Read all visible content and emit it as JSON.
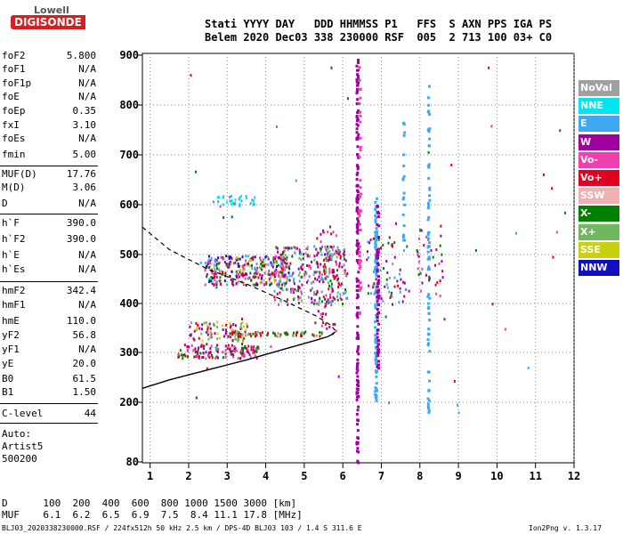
{
  "logo": {
    "line1": "Lowell",
    "line2": "DIGISONDE"
  },
  "header": {
    "row1": "Stati YYYY DAY   DDD HHMMSS P1   FFS  S AXN PPS IGA PS",
    "row2": "Belem 2020 Dec03 338 230000 RSF  005  2 713 100 03+ C0"
  },
  "params": [
    {
      "label": "foF2",
      "value": "5.800"
    },
    {
      "label": "foF1",
      "value": "N/A"
    },
    {
      "label": "foF1p",
      "value": "N/A"
    },
    {
      "label": "foE",
      "value": "N/A"
    },
    {
      "label": "foEp",
      "value": "0.35"
    },
    {
      "label": "fxI",
      "value": "3.10"
    },
    {
      "label": "foEs",
      "value": "N/A"
    },
    {
      "label": "fmin",
      "value": "5.00"
    },
    {
      "label": "MUF(D)",
      "value": "17.76"
    },
    {
      "label": "M(D)",
      "value": "3.06"
    },
    {
      "label": "D",
      "value": "N/A"
    },
    {
      "label": "h`F",
      "value": "390.0"
    },
    {
      "label": "h`F2",
      "value": "390.0"
    },
    {
      "label": "h`E",
      "value": "N/A"
    },
    {
      "label": "h`Es",
      "value": "N/A"
    },
    {
      "label": "hmF2",
      "value": "342.4"
    },
    {
      "label": "hmF1",
      "value": "N/A"
    },
    {
      "label": "hmE",
      "value": "110.0"
    },
    {
      "label": "yF2",
      "value": "56.8"
    },
    {
      "label": "yF1",
      "value": "N/A"
    },
    {
      "label": "yE",
      "value": "20.0"
    },
    {
      "label": "B0",
      "value": "61.5"
    },
    {
      "label": "B1",
      "value": "1.50"
    },
    {
      "label": "C-level",
      "value": "44"
    }
  ],
  "autoscaling": {
    "line1": "Auto:",
    "line2": "Artist5",
    "line3": "500200"
  },
  "legend": [
    {
      "label": "NoVal",
      "color": "#a0a0a0"
    },
    {
      "label": "NNE",
      "color": "#00e6f0"
    },
    {
      "label": "E",
      "color": "#40a8f0"
    },
    {
      "label": "W",
      "color": "#a000a0"
    },
    {
      "label": "Vo-",
      "color": "#f040b0"
    },
    {
      "label": "Vo+",
      "color": "#e00020"
    },
    {
      "label": "SSW",
      "color": "#f0b0b0"
    },
    {
      "label": "X-",
      "color": "#008000"
    },
    {
      "label": "X+",
      "color": "#70b860"
    },
    {
      "label": "SSE",
      "color": "#c8d010"
    },
    {
      "label": "NNW",
      "color": "#1010c0"
    }
  ],
  "footer": {
    "d_row": "D      100  200  400  600  800 1000 1500 3000 [km]",
    "muf_row": "MUF    6.1  6.2  6.5  6.9  7.5  8.4 11.1 17.8 [MHz]",
    "file_info": "BLJ03_2020338230000.RSF / 224fx512h 50 kHz 2.5 km / DPS-4D BLJ03 103 / 1.4 S 311.6 E",
    "version": "Ion2Png v. 1.3.17"
  },
  "chart_data": {
    "type": "scatter",
    "xlim": [
      0.8,
      12
    ],
    "ylim": [
      80,
      900
    ],
    "x_ticks": [
      1,
      2,
      3,
      4,
      5,
      6,
      7,
      8,
      9,
      10,
      11,
      12
    ],
    "y_ticks": [
      80,
      200,
      300,
      400,
      500,
      600,
      700,
      800,
      900
    ],
    "grid": true,
    "legend_position": "right",
    "profile_solid": {
      "x": [
        0.8,
        1.5,
        2.5,
        3.5,
        4.5,
        5.3,
        5.6,
        5.75,
        5.8
      ],
      "y": [
        228,
        245,
        265,
        285,
        307,
        325,
        332,
        338,
        342
      ]
    },
    "profile_dashed": {
      "x": [
        0.8,
        1.5,
        2.5,
        3.5,
        4.5,
        5.3,
        5.7,
        5.8
      ],
      "y": [
        555,
        510,
        470,
        440,
        405,
        375,
        355,
        345
      ]
    },
    "clusters": [
      {
        "x": [
          1.7,
          3.8
        ],
        "y": [
          290,
          320
        ],
        "n": 140,
        "colors": [
          "#e00020",
          "#a000a0",
          "#f040b0",
          "#008000"
        ]
      },
      {
        "x": [
          2.0,
          3.5
        ],
        "y": [
          325,
          365
        ],
        "n": 90,
        "colors": [
          "#e00020",
          "#a000a0",
          "#70b860",
          "#c8d010"
        ]
      },
      {
        "x": [
          3.0,
          5.6
        ],
        "y": [
          335,
          345
        ],
        "n": 60,
        "colors": [
          "#e00020",
          "#70b860",
          "#008000"
        ]
      },
      {
        "x": [
          2.4,
          4.6
        ],
        "y": [
          440,
          500
        ],
        "n": 320,
        "colors": [
          "#a000a0",
          "#f040b0",
          "#40a8f0",
          "#008000",
          "#c8d010",
          "#1010c0",
          "#e00020"
        ]
      },
      {
        "x": [
          4.2,
          6.1
        ],
        "y": [
          400,
          520
        ],
        "n": 300,
        "colors": [
          "#a000a0",
          "#f040b0",
          "#e00020",
          "#40a8f0",
          "#008000",
          "#70b860"
        ]
      },
      {
        "x": [
          2.6,
          3.7
        ],
        "y": [
          600,
          620
        ],
        "n": 35,
        "colors": [
          "#40a8f0",
          "#00e6f0"
        ]
      },
      {
        "x": [
          5.2,
          5.9
        ],
        "y": [
          340,
          560
        ],
        "n": 60,
        "colors": [
          "#a000a0",
          "#f040b0",
          "#e00020"
        ]
      },
      {
        "x": [
          6.6,
          7.7
        ],
        "y": [
          400,
          540
        ],
        "n": 70,
        "colors": [
          "#a000a0",
          "#e00020",
          "#008000",
          "#40a8f0"
        ]
      },
      {
        "x": [
          7.9,
          8.6
        ],
        "y": [
          410,
          560
        ],
        "n": 40,
        "colors": [
          "#e00020",
          "#f040b0",
          "#008000",
          "#a000a0"
        ]
      },
      {
        "x": [
          1.0,
          11.9
        ],
        "y": [
          180,
          880
        ],
        "n": 40,
        "colors": [
          "#a000a0",
          "#40a8f0",
          "#e00020",
          "#f040b0",
          "#008000"
        ]
      }
    ],
    "vertical_traces": [
      {
        "x": 6.35,
        "y": [
          80,
          895
        ],
        "n": 170,
        "color": "#a000a0"
      },
      {
        "x": 6.42,
        "y": [
          380,
          880
        ],
        "n": 40,
        "color": "#f040b0"
      },
      {
        "x": 6.83,
        "y": [
          200,
          620
        ],
        "n": 100,
        "color": "#40a8f0"
      },
      {
        "x": 6.88,
        "y": [
          260,
          600
        ],
        "n": 70,
        "color": "#a000a0"
      },
      {
        "x": 7.55,
        "y": [
          520,
          770
        ],
        "n": 20,
        "color": "#40a8f0"
      },
      {
        "x": 8.2,
        "y": [
          180,
          880
        ],
        "n": 70,
        "color": "#40a8f0"
      }
    ]
  }
}
